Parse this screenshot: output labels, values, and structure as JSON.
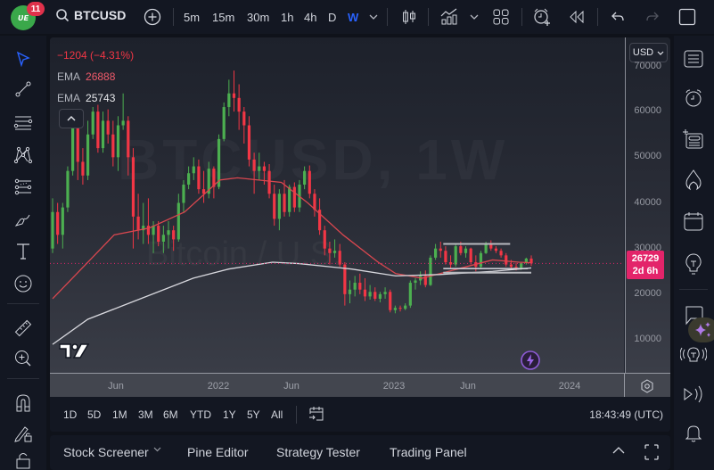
{
  "header": {
    "notifications": "11",
    "avatar_text": "ᐡᐧ",
    "symbol": "BTCUSD",
    "intervals": [
      "5m",
      "15m",
      "30m",
      "1h",
      "4h",
      "D",
      "W"
    ],
    "active_interval": "W"
  },
  "legend": {
    "change": "−1204 (−4.31%)",
    "ema1_label": "EMA",
    "ema1_value": "26888",
    "ema2_label": "EMA",
    "ema2_value": "25743",
    "collapse": "^"
  },
  "watermark": {
    "symbol_line": "BTCUSD, 1W",
    "name_line": "Bitcoin / U.S."
  },
  "price_axis": {
    "currency": "USD",
    "current_price": "26729",
    "countdown": "2d 6h"
  },
  "time_range": {
    "buttons": [
      "1D",
      "5D",
      "1M",
      "3M",
      "6M",
      "YTD",
      "1Y",
      "5Y",
      "All"
    ],
    "clock": "18:43:49 (UTC)"
  },
  "bottom_panel": {
    "tabs": [
      "Stock Screener",
      "Pine Editor",
      "Strategy Tester",
      "Trading Panel"
    ]
  },
  "colors": {
    "up": "#4caf50",
    "down": "#f23645",
    "ema_fast": "#d9474f",
    "ema_slow": "#d8d8de",
    "accent": "#2962ff",
    "price_tag": "#e3246a"
  },
  "chart_data": {
    "type": "candlestick",
    "title": "BTCUSD, 1W — Bitcoin / U.S. Dollar",
    "xlabel": "",
    "ylabel": "USD",
    "ylim": [
      0,
      72000
    ],
    "yticks": [
      10000,
      20000,
      30000,
      40000,
      50000,
      60000,
      70000
    ],
    "xticks": [
      "Jun",
      "2022",
      "Jun",
      "2023",
      "Jun",
      "2024"
    ],
    "grid": false,
    "current_price": 26729,
    "change": -1204,
    "change_pct": -4.31,
    "series": [
      {
        "name": "EMA (fast, red)",
        "last": 26888,
        "points": [
          [
            2021.0,
            19000
          ],
          [
            2021.2,
            27000
          ],
          [
            2021.35,
            33000
          ],
          [
            2021.55,
            34500
          ],
          [
            2021.75,
            38000
          ],
          [
            2021.95,
            45000
          ],
          [
            2022.05,
            45500
          ],
          [
            2022.3,
            44500
          ],
          [
            2022.45,
            40000
          ],
          [
            2022.65,
            33000
          ],
          [
            2022.85,
            27000
          ],
          [
            2022.95,
            24500
          ],
          [
            2023.1,
            23500
          ],
          [
            2023.3,
            25500
          ],
          [
            2023.5,
            27500
          ],
          [
            2023.65,
            27000
          ],
          [
            2023.72,
            26888
          ]
        ]
      },
      {
        "name": "EMA (slow, white)",
        "last": 25743,
        "points": [
          [
            2021.0,
            9000
          ],
          [
            2021.2,
            14500
          ],
          [
            2021.4,
            17500
          ],
          [
            2021.6,
            20500
          ],
          [
            2021.8,
            23500
          ],
          [
            2022.0,
            25500
          ],
          [
            2022.25,
            27000
          ],
          [
            2022.4,
            26700
          ],
          [
            2022.7,
            25500
          ],
          [
            2022.95,
            24000
          ],
          [
            2023.2,
            24300
          ],
          [
            2023.5,
            25000
          ],
          [
            2023.72,
            25743
          ]
        ]
      },
      {
        "name": "Range top (drawn line)",
        "points": [
          [
            2023.22,
            31000
          ],
          [
            2023.6,
            31000
          ]
        ]
      },
      {
        "name": "Range bottom (drawn lines)",
        "points": [
          [
            2023.22,
            24700
          ],
          [
            2023.72,
            24700
          ]
        ]
      }
    ],
    "candles_ohlc_approx": [
      [
        2021.0,
        30000,
        41000,
        29000,
        38000
      ],
      [
        2021.02,
        38000,
        40000,
        31000,
        33000
      ],
      [
        2021.04,
        33000,
        40000,
        30000,
        39000
      ],
      [
        2021.06,
        39000,
        48000,
        38000,
        47000
      ],
      [
        2021.08,
        47000,
        58000,
        46000,
        57000
      ],
      [
        2021.1,
        57000,
        58500,
        45000,
        49000
      ],
      [
        2021.12,
        49000,
        52000,
        44000,
        46000
      ],
      [
        2021.14,
        46000,
        58000,
        45000,
        55000
      ],
      [
        2021.16,
        55000,
        61000,
        54000,
        60000
      ],
      [
        2021.18,
        60000,
        61500,
        51000,
        52000
      ],
      [
        2021.2,
        52000,
        60000,
        51000,
        58000
      ],
      [
        2021.22,
        58000,
        60500,
        53000,
        55000
      ],
      [
        2021.24,
        55000,
        58000,
        48000,
        50000
      ],
      [
        2021.26,
        50000,
        59000,
        47000,
        57000
      ],
      [
        2021.28,
        57000,
        64000,
        56000,
        58000
      ],
      [
        2021.3,
        58000,
        59000,
        46000,
        50000
      ],
      [
        2021.32,
        50000,
        52000,
        30000,
        37000
      ],
      [
        2021.34,
        37000,
        42000,
        32000,
        34000
      ],
      [
        2021.36,
        34000,
        40000,
        31000,
        35000
      ],
      [
        2021.38,
        35000,
        41000,
        31000,
        33000
      ],
      [
        2021.4,
        33000,
        36000,
        29000,
        35000
      ],
      [
        2021.42,
        35000,
        36000,
        30500,
        31500
      ],
      [
        2021.44,
        31500,
        35000,
        29000,
        33000
      ],
      [
        2021.46,
        33000,
        36000,
        30000,
        34000
      ],
      [
        2021.48,
        34000,
        35000,
        29500,
        32000
      ],
      [
        2021.5,
        32000,
        42000,
        31500,
        40000
      ],
      [
        2021.52,
        40000,
        45000,
        38000,
        44000
      ],
      [
        2021.54,
        44000,
        48000,
        43000,
        46500
      ],
      [
        2021.56,
        46500,
        50000,
        45000,
        48000
      ],
      [
        2021.58,
        48000,
        49500,
        42000,
        43000
      ],
      [
        2021.6,
        43000,
        47000,
        40000,
        42000
      ],
      [
        2021.62,
        42000,
        49000,
        41000,
        47500
      ],
      [
        2021.64,
        47500,
        48000,
        41000,
        43500
      ],
      [
        2021.66,
        43500,
        55000,
        43000,
        54000
      ],
      [
        2021.68,
        54000,
        62000,
        53500,
        61000
      ],
      [
        2021.7,
        61000,
        67000,
        59000,
        64000
      ],
      [
        2021.72,
        64000,
        69000,
        60000,
        63000
      ],
      [
        2021.74,
        63000,
        66000,
        56000,
        60000
      ],
      [
        2021.76,
        60000,
        61000,
        53000,
        57000
      ],
      [
        2021.78,
        57000,
        59000,
        48000,
        49500
      ],
      [
        2021.8,
        49500,
        51000,
        42000,
        47000
      ],
      [
        2021.82,
        47000,
        51000,
        45000,
        48000
      ],
      [
        2021.84,
        48000,
        49000,
        44000,
        47000
      ],
      [
        2021.86,
        47000,
        48500,
        41000,
        42000
      ],
      [
        2021.88,
        42000,
        44000,
        35000,
        36500
      ],
      [
        2021.9,
        36500,
        43000,
        34000,
        42000
      ],
      [
        2021.92,
        42000,
        45000,
        37000,
        38000
      ],
      [
        2021.94,
        38000,
        44000,
        37000,
        43500
      ],
      [
        2021.96,
        43500,
        44500,
        38000,
        39000
      ],
      [
        2021.98,
        39000,
        45000,
        38000,
        44000
      ],
      [
        2022.0,
        44000,
        48000,
        43000,
        47000
      ],
      [
        2022.02,
        47000,
        48200,
        41000,
        42000
      ],
      [
        2022.04,
        42000,
        43000,
        37000,
        38500
      ],
      [
        2022.06,
        38500,
        41000,
        33000,
        34000
      ],
      [
        2022.08,
        34000,
        35000,
        28500,
        30000
      ],
      [
        2022.1,
        30000,
        31500,
        26500,
        29000
      ],
      [
        2022.12,
        29000,
        32000,
        28000,
        29500
      ],
      [
        2022.14,
        29500,
        31000,
        26000,
        26500
      ],
      [
        2022.16,
        26500,
        27000,
        17500,
        20000
      ],
      [
        2022.18,
        20000,
        23000,
        18000,
        21000
      ],
      [
        2022.2,
        21000,
        24000,
        19500,
        22500
      ],
      [
        2022.22,
        22500,
        24500,
        20000,
        21000
      ],
      [
        2022.24,
        21000,
        23500,
        18500,
        19500
      ],
      [
        2022.26,
        19500,
        22000,
        18800,
        20500
      ],
      [
        2022.28,
        20500,
        21500,
        18500,
        19000
      ],
      [
        2022.3,
        19000,
        20500,
        18200,
        20000
      ],
      [
        2022.32,
        20000,
        21500,
        19000,
        20500
      ],
      [
        2022.34,
        20500,
        21000,
        16000,
        16500
      ],
      [
        2022.36,
        16500,
        17500,
        15800,
        17000
      ],
      [
        2022.38,
        17000,
        17500,
        16200,
        16800
      ],
      [
        2022.4,
        16800,
        18000,
        16500,
        17500
      ],
      [
        2022.42,
        17500,
        23000,
        17000,
        22500
      ],
      [
        2022.44,
        22500,
        23500,
        21000,
        23000
      ],
      [
        2022.46,
        23000,
        25000,
        22000,
        24000
      ],
      [
        2022.48,
        24000,
        25200,
        21500,
        22000
      ],
      [
        2022.5,
        22000,
        28500,
        21800,
        28000
      ],
      [
        2022.52,
        28000,
        31000,
        27500,
        30000
      ],
      [
        2022.54,
        30000,
        31500,
        28000,
        29500
      ],
      [
        2022.56,
        29500,
        30500,
        26500,
        27000
      ],
      [
        2022.58,
        27000,
        28500,
        25500,
        26500
      ],
      [
        2022.6,
        26500,
        31000,
        26000,
        30500
      ],
      [
        2022.62,
        30500,
        31500,
        28500,
        29000
      ],
      [
        2022.64,
        29000,
        30500,
        28000,
        30000
      ],
      [
        2022.66,
        30000,
        30200,
        26500,
        27000
      ],
      [
        2022.68,
        27000,
        28500,
        25000,
        26000
      ],
      [
        2022.7,
        26000,
        29500,
        25500,
        29000
      ],
      [
        2022.72,
        29000,
        31500,
        28800,
        31000
      ],
      [
        2022.74,
        31000,
        31800,
        29500,
        30000
      ],
      [
        2022.76,
        30000,
        30500,
        29000,
        29500
      ],
      [
        2022.78,
        29500,
        30000,
        28000,
        28500
      ],
      [
        2022.8,
        28500,
        29000,
        26000,
        26500
      ],
      [
        2022.82,
        26500,
        27500,
        25500,
        26000
      ],
      [
        2022.84,
        26000,
        26800,
        25200,
        25800
      ],
      [
        2022.86,
        25800,
        27000,
        25300,
        26800
      ],
      [
        2022.88,
        26800,
        28000,
        26500,
        27800
      ],
      [
        2022.9,
        27800,
        28500,
        26200,
        26729
      ]
    ]
  }
}
